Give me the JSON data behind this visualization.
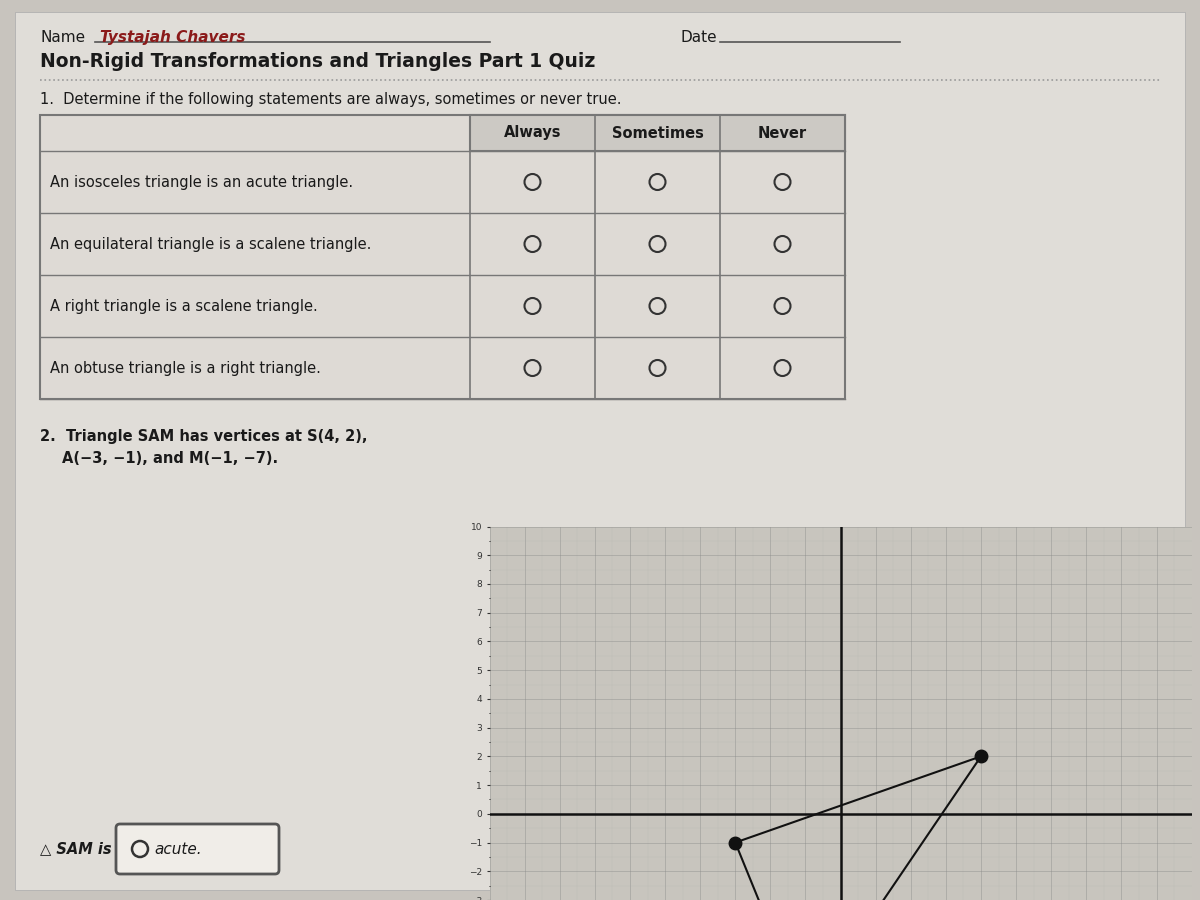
{
  "background_color": "#c8c4be",
  "page_bg": "#e0ddd8",
  "name_label": "Name",
  "name_value": "Tystajah Chavers",
  "name_value_color": "#8b1a1a",
  "date_label": "Date",
  "title": "Non-Rigid Transformations and Triangles Part 1 Quiz",
  "q1_text": "1.  Determine if the following statements are always, sometimes or never true.",
  "col_headers": [
    "Always",
    "Sometimes",
    "Never"
  ],
  "rows": [
    "An isosceles triangle is an acute triangle.",
    "An equilateral triangle is a scalene triangle.",
    "A right triangle is a scalene triangle.",
    "An obtuse triangle is a right triangle."
  ],
  "q2_text_line1": "2.  Triangle SAM has vertices at S(4, 2),",
  "q2_text_line2": "A(−3, −1), and M(−1, −7).",
  "q2_answer_text": "△ SAM is",
  "graph_xlim": [
    -10,
    10
  ],
  "graph_ylim": [
    -3,
    10
  ],
  "triangle_S": [
    4,
    2
  ],
  "triangle_A": [
    -3,
    -1
  ],
  "triangle_M": [
    -1,
    -7
  ],
  "table_bg": "#dedad5",
  "table_header_bg": "#ccc9c4",
  "circle_color": "#333333",
  "text_color": "#1a1a1a",
  "graph_bg": "#c8c5be"
}
